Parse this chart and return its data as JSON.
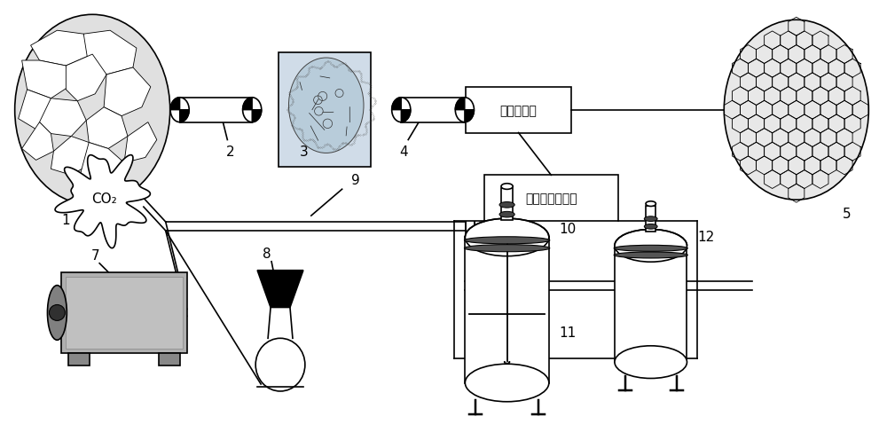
{
  "bg_color": "#ffffff",
  "label_1": "1",
  "label_2": "2",
  "label_3": "3",
  "label_4": "4",
  "label_5": "5",
  "label_7": "7",
  "label_8": "8",
  "label_9": "9",
  "label_10": "10",
  "label_11": "11",
  "label_12": "12",
  "box1_text": "按比例混合",
  "box2_text": "井下待充填空间",
  "co2_text": "CO₂",
  "line_color": "#000000",
  "figsize": [
    10.0,
    5.06
  ],
  "dpi": 100
}
